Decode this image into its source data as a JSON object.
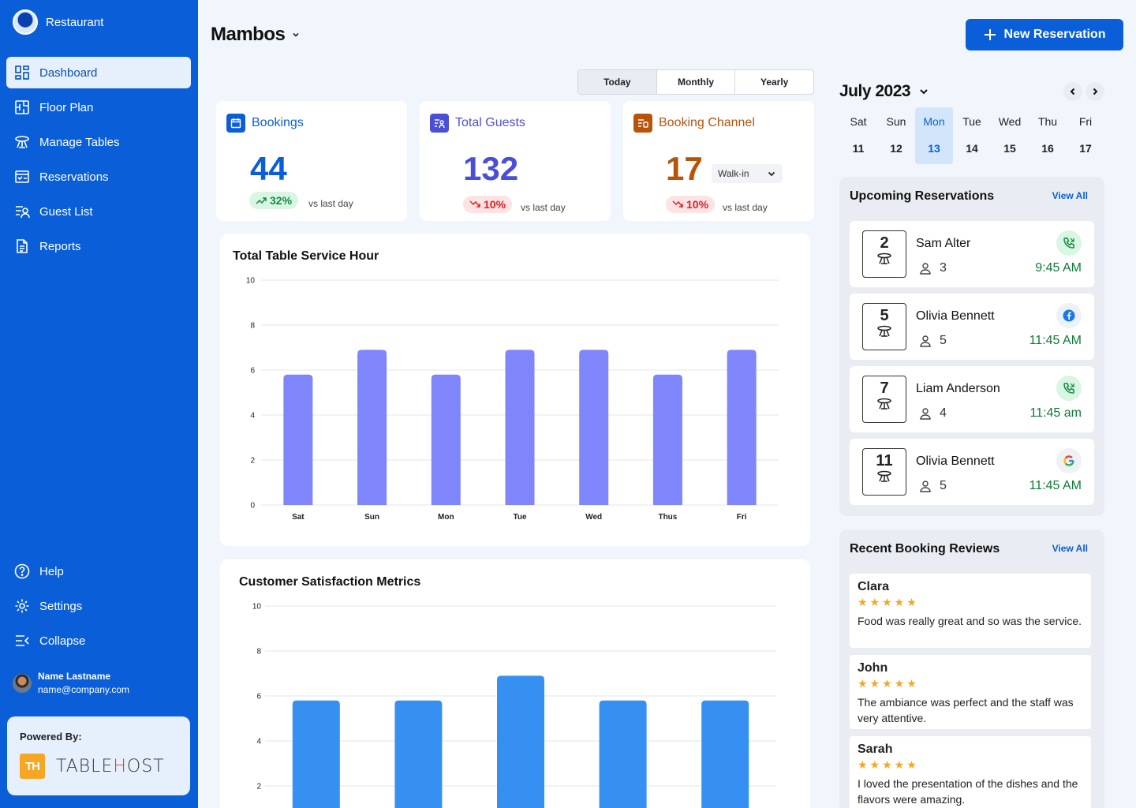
{
  "sidebar": {
    "brand": "Restaurant",
    "nav": [
      {
        "label": "Dashboard",
        "icon": "dashboard-icon",
        "active": true
      },
      {
        "label": "Floor Plan",
        "icon": "floor-plan-icon"
      },
      {
        "label": "Manage Tables",
        "icon": "table-icon"
      },
      {
        "label": "Reservations",
        "icon": "reservations-icon"
      },
      {
        "label": "Guest List",
        "icon": "guest-list-icon"
      },
      {
        "label": "Reports",
        "icon": "report-icon"
      }
    ],
    "bottom": [
      {
        "label": "Help",
        "icon": "help-icon"
      },
      {
        "label": "Settings",
        "icon": "gear-icon"
      },
      {
        "label": "Collapse",
        "icon": "collapse-icon"
      }
    ],
    "user": {
      "name": "Name Lastname",
      "email": "name@company.com"
    },
    "powered_by": {
      "label": "Powered By:",
      "logo_mark": "TH",
      "logo_text_a": "TABLE",
      "logo_text_b": "H",
      "logo_text_c": "OST"
    }
  },
  "header": {
    "title": "Mambos",
    "new_reservation": "New Reservation"
  },
  "periods": {
    "today": "Today",
    "monthly": "Monthly",
    "yearly": "Yearly",
    "selected": "Today"
  },
  "stats": {
    "bookings": {
      "label": "Bookings",
      "value": "44",
      "change": "32%",
      "direction": "up",
      "vs": "vs last day",
      "color": "#0a5fd8"
    },
    "guests": {
      "label": "Total Guests",
      "value": "132",
      "change": "10%",
      "direction": "down",
      "vs": "vs last day",
      "color": "#4b4fd8"
    },
    "channel": {
      "label": "Booking Channel",
      "value": "17",
      "change": "10%",
      "direction": "down",
      "vs": "vs last day",
      "select": "Walk-in",
      "color": "#b8530a"
    }
  },
  "service_chart": {
    "title": "Total Table Service Hour",
    "chart_data": {
      "type": "bar",
      "categories": [
        "Sat",
        "Sun",
        "Mon",
        "Tue",
        "Wed",
        "Thus",
        "Fri"
      ],
      "values": [
        5.8,
        6.9,
        5.8,
        6.9,
        6.9,
        5.8,
        6.9
      ],
      "ylim": [
        0,
        10
      ],
      "yticks": [
        0,
        2,
        4,
        6,
        8,
        10
      ],
      "color": "#7f85fb"
    }
  },
  "satisfaction_chart": {
    "title": "Customer Satisfaction Metrics",
    "chart_data": {
      "type": "bar",
      "categories": [
        "",
        "",
        "",
        "",
        ""
      ],
      "values": [
        5.8,
        5.8,
        6.9,
        5.8,
        5.8
      ],
      "ylim": [
        0,
        10
      ],
      "yticks": [
        2,
        4,
        6,
        8,
        10
      ],
      "color": "#3690f2"
    }
  },
  "calendar": {
    "month": "July 2023",
    "days": [
      {
        "name": "Sat",
        "date": "11"
      },
      {
        "name": "Sun",
        "date": "12"
      },
      {
        "name": "Mon",
        "date": "13",
        "active": true
      },
      {
        "name": "Tue",
        "date": "14"
      },
      {
        "name": "Wed",
        "date": "15"
      },
      {
        "name": "Thu",
        "date": "16"
      },
      {
        "name": "Fri",
        "date": "17"
      }
    ]
  },
  "upcoming": {
    "title": "Upcoming Reservations",
    "view_all": "View All",
    "items": [
      {
        "table": "2",
        "name": "Sam Alter",
        "guests": "3",
        "time": "9:45 AM",
        "source": "phone-icon"
      },
      {
        "table": "5",
        "name": "Olivia Bennett",
        "guests": "5",
        "time": "11:45 AM",
        "source": "facebook-icon"
      },
      {
        "table": "7",
        "name": "Liam Anderson",
        "guests": "4",
        "time": "11:45 am",
        "source": "phone-icon"
      },
      {
        "table": "11",
        "name": "Olivia Bennett",
        "guests": "5",
        "time": "11:45 AM",
        "source": "google-icon"
      }
    ]
  },
  "reviews": {
    "title": "Recent Booking Reviews",
    "view_all": "View All",
    "items": [
      {
        "name": "Clara",
        "rating": 5,
        "text": "Food was really great and so was the service."
      },
      {
        "name": "John",
        "rating": 5,
        "text": "The ambiance was perfect and the staff was very attentive."
      },
      {
        "name": "Sarah",
        "rating": 5,
        "text": "I loved the presentation of the dishes and the flavors were amazing."
      }
    ]
  }
}
